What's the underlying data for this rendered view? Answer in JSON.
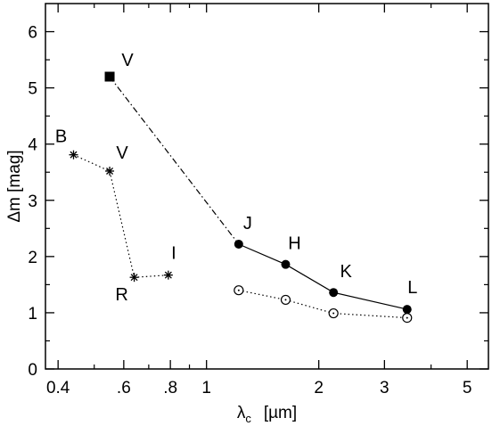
{
  "chart_data": {
    "type": "scatter",
    "xscale": "log",
    "xlim": [
      0.37,
      5.7
    ],
    "ylim": [
      0,
      6.5
    ],
    "xlabel": "λ",
    "xlabel_sub": "c",
    "xlabel_unit": "[µm]",
    "ylabel": "Δm  [mag]",
    "grid": false,
    "legend": "none",
    "xticks": [
      {
        "value": 0.4,
        "label": "0.4"
      },
      {
        "value": 0.6,
        "label": ".6"
      },
      {
        "value": 0.8,
        "label": ".8"
      },
      {
        "value": 1,
        "label": "1"
      },
      {
        "value": 2,
        "label": "2"
      },
      {
        "value": 3,
        "label": "3"
      },
      {
        "value": 5,
        "label": "5"
      }
    ],
    "xminor": [
      0.5,
      0.7,
      0.9,
      4
    ],
    "yticks": [
      {
        "value": 0,
        "label": "0"
      },
      {
        "value": 1,
        "label": "1"
      },
      {
        "value": 2,
        "label": "2"
      },
      {
        "value": 3,
        "label": "3"
      },
      {
        "value": 4,
        "label": "4"
      },
      {
        "value": 5,
        "label": "5"
      },
      {
        "value": 6,
        "label": "6"
      }
    ],
    "yminor_step": 0.5,
    "series": [
      {
        "marker": "asterisk",
        "line": "dotted",
        "points": [
          {
            "x": 0.44,
            "y": 3.81,
            "label": "B"
          },
          {
            "x": 0.55,
            "y": 3.52,
            "label": "V"
          },
          {
            "x": 0.64,
            "y": 1.63,
            "label": "R"
          },
          {
            "x": 0.79,
            "y": 1.67,
            "label": "I"
          }
        ]
      },
      {
        "marker": "filled-square",
        "line": "none",
        "points": [
          {
            "x": 0.55,
            "y": 5.2,
            "label": "V"
          }
        ]
      },
      {
        "marker": "filled-circle",
        "line": "solid",
        "points": [
          {
            "x": 1.22,
            "y": 2.22,
            "label": "J"
          },
          {
            "x": 1.63,
            "y": 1.86,
            "label": "H"
          },
          {
            "x": 2.19,
            "y": 1.36,
            "label": "K"
          },
          {
            "x": 3.45,
            "y": 1.06,
            "label": "L"
          }
        ]
      },
      {
        "marker": "open-circle",
        "line": "dotted",
        "points": [
          {
            "x": 1.22,
            "y": 1.4
          },
          {
            "x": 1.63,
            "y": 1.23
          },
          {
            "x": 2.19,
            "y": 0.99
          },
          {
            "x": 3.45,
            "y": 0.91
          }
        ]
      }
    ],
    "connectors": [
      {
        "from": [
          0.55,
          5.2
        ],
        "to": [
          1.22,
          2.22
        ],
        "line": "dashdot"
      }
    ]
  }
}
